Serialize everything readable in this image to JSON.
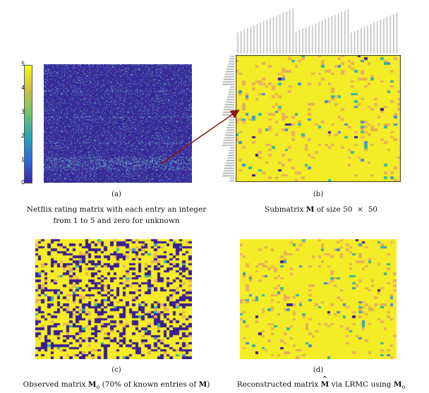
{
  "figure": {
    "panels": [
      {
        "id": "a",
        "label": "(a)",
        "caption_line1": "Netflix rating matrix with each entry an integer",
        "caption_line2": "from 1 to 5 and zero for unknown"
      },
      {
        "id": "b",
        "label": "(b)",
        "caption_pre": "Submatrix ",
        "caption_bold": "M",
        "caption_post": " of size 50  ×  50"
      },
      {
        "id": "c",
        "label": "(c)",
        "caption_pre": "Observed matrix ",
        "caption_bold": "M",
        "caption_sub": "o",
        "caption_mid": " (70% of known entries of ",
        "caption_bold2": "M",
        "caption_post": ")"
      },
      {
        "id": "d",
        "label": "(d)",
        "caption_pre": "Reconstructed matrix ",
        "caption_bold": "M",
        "caption_hat": "̂",
        "caption_mid": " via LRMC using ",
        "caption_bold2": "M",
        "caption_sub": "o"
      }
    ],
    "colorbar": {
      "ticks": [
        "5",
        "4",
        "3",
        "2",
        "1",
        "0"
      ]
    },
    "colors": {
      "zero": "#3b1f8f",
      "one": "#4a8fc9",
      "two": "#35b7a0",
      "three": "#8fd35a",
      "four": "#e8b05a",
      "five": "#f4ec27",
      "arrow": "#8b1a1a"
    }
  }
}
